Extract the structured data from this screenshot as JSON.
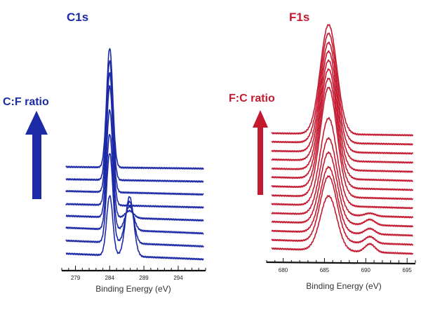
{
  "chart_data": [
    {
      "type": "line",
      "title": "C1s",
      "xlabel": "Binding Energy (eV)",
      "ylabel": "",
      "arrow_label": "C:F ratio",
      "color": "#1c2aa6",
      "xlim": [
        277,
        298
      ],
      "ticks": [
        "279",
        "284",
        "289",
        "294"
      ],
      "peaks": [
        {
          "center": 284.0,
          "width": 0.45
        },
        {
          "center": 286.9,
          "width": 0.6
        }
      ],
      "series": [
        {
          "amps": [
            2.0,
            0.0
          ],
          "baseline": 0.03
        },
        {
          "amps": [
            2.0,
            0.0
          ],
          "baseline": 0.04
        },
        {
          "amps": [
            2.0,
            0.0
          ],
          "baseline": 0.06
        },
        {
          "amps": [
            2.0,
            0.0
          ],
          "baseline": 0.06
        },
        {
          "amps": [
            1.8,
            0.12
          ],
          "baseline": 0.08
        },
        {
          "amps": [
            1.6,
            0.4
          ],
          "baseline": 0.1
        },
        {
          "amps": [
            1.5,
            0.7
          ],
          "baseline": 0.1
        },
        {
          "amps": [
            1.0,
            1.0
          ],
          "baseline": 0.1
        }
      ]
    },
    {
      "type": "line",
      "title": "F1s",
      "xlabel": "Binding Energy (eV)",
      "ylabel": "",
      "arrow_label": "F:C ratio",
      "color": "#c41a30",
      "xlim": [
        678,
        696
      ],
      "ticks": [
        "680",
        "685",
        "690",
        "695"
      ],
      "peaks": [
        {
          "center": 685.5,
          "width": 1.0
        },
        {
          "center": 690.5,
          "width": 0.6
        }
      ],
      "series": [
        {
          "amps": [
            2.0,
            0.0
          ],
          "baseline": 0.04
        },
        {
          "amps": [
            2.0,
            0.0
          ],
          "baseline": 0.05
        },
        {
          "amps": [
            2.0,
            0.0
          ],
          "baseline": 0.05
        },
        {
          "amps": [
            2.0,
            0.0
          ],
          "baseline": 0.06
        },
        {
          "amps": [
            2.0,
            0.0
          ],
          "baseline": 0.06
        },
        {
          "amps": [
            2.0,
            0.0
          ],
          "baseline": 0.07
        },
        {
          "amps": [
            2.0,
            0.0
          ],
          "baseline": 0.07
        },
        {
          "amps": [
            2.0,
            0.0
          ],
          "baseline": 0.07
        },
        {
          "amps": [
            1.6,
            0.0
          ],
          "baseline": 0.08
        },
        {
          "amps": [
            1.4,
            0.05
          ],
          "baseline": 0.08
        },
        {
          "amps": [
            1.3,
            0.1
          ],
          "baseline": 0.09
        },
        {
          "amps": [
            1.2,
            0.1
          ],
          "baseline": 0.09
        },
        {
          "amps": [
            1.2,
            0.12
          ],
          "baseline": 0.09
        },
        {
          "amps": [
            1.0,
            0.15
          ],
          "baseline": 0.1
        }
      ]
    }
  ]
}
